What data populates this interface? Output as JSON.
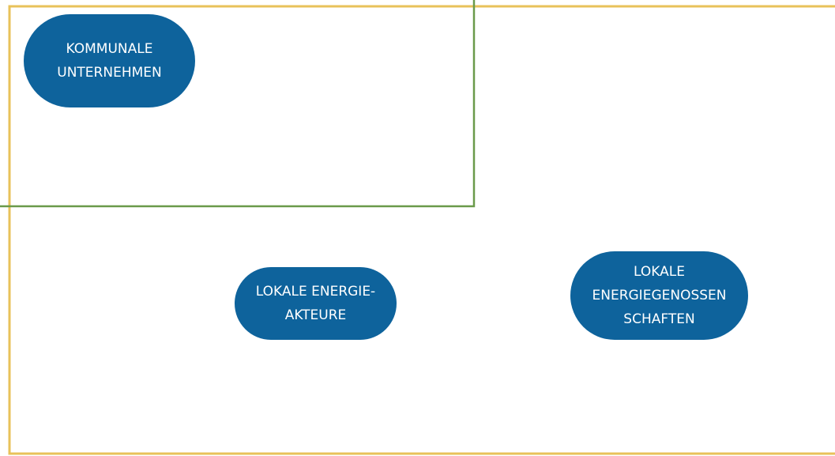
{
  "nodes": [
    {
      "lines": [
        "KOMMUNALE",
        "UNTERNEHMEN"
      ]
    },
    {
      "lines": [
        "LOKALE ENERGIE-",
        "AKTEURE"
      ]
    },
    {
      "lines": [
        "LOKALE",
        "ENERGIEGENOSSEN",
        "SCHAFTEN"
      ]
    }
  ]
}
